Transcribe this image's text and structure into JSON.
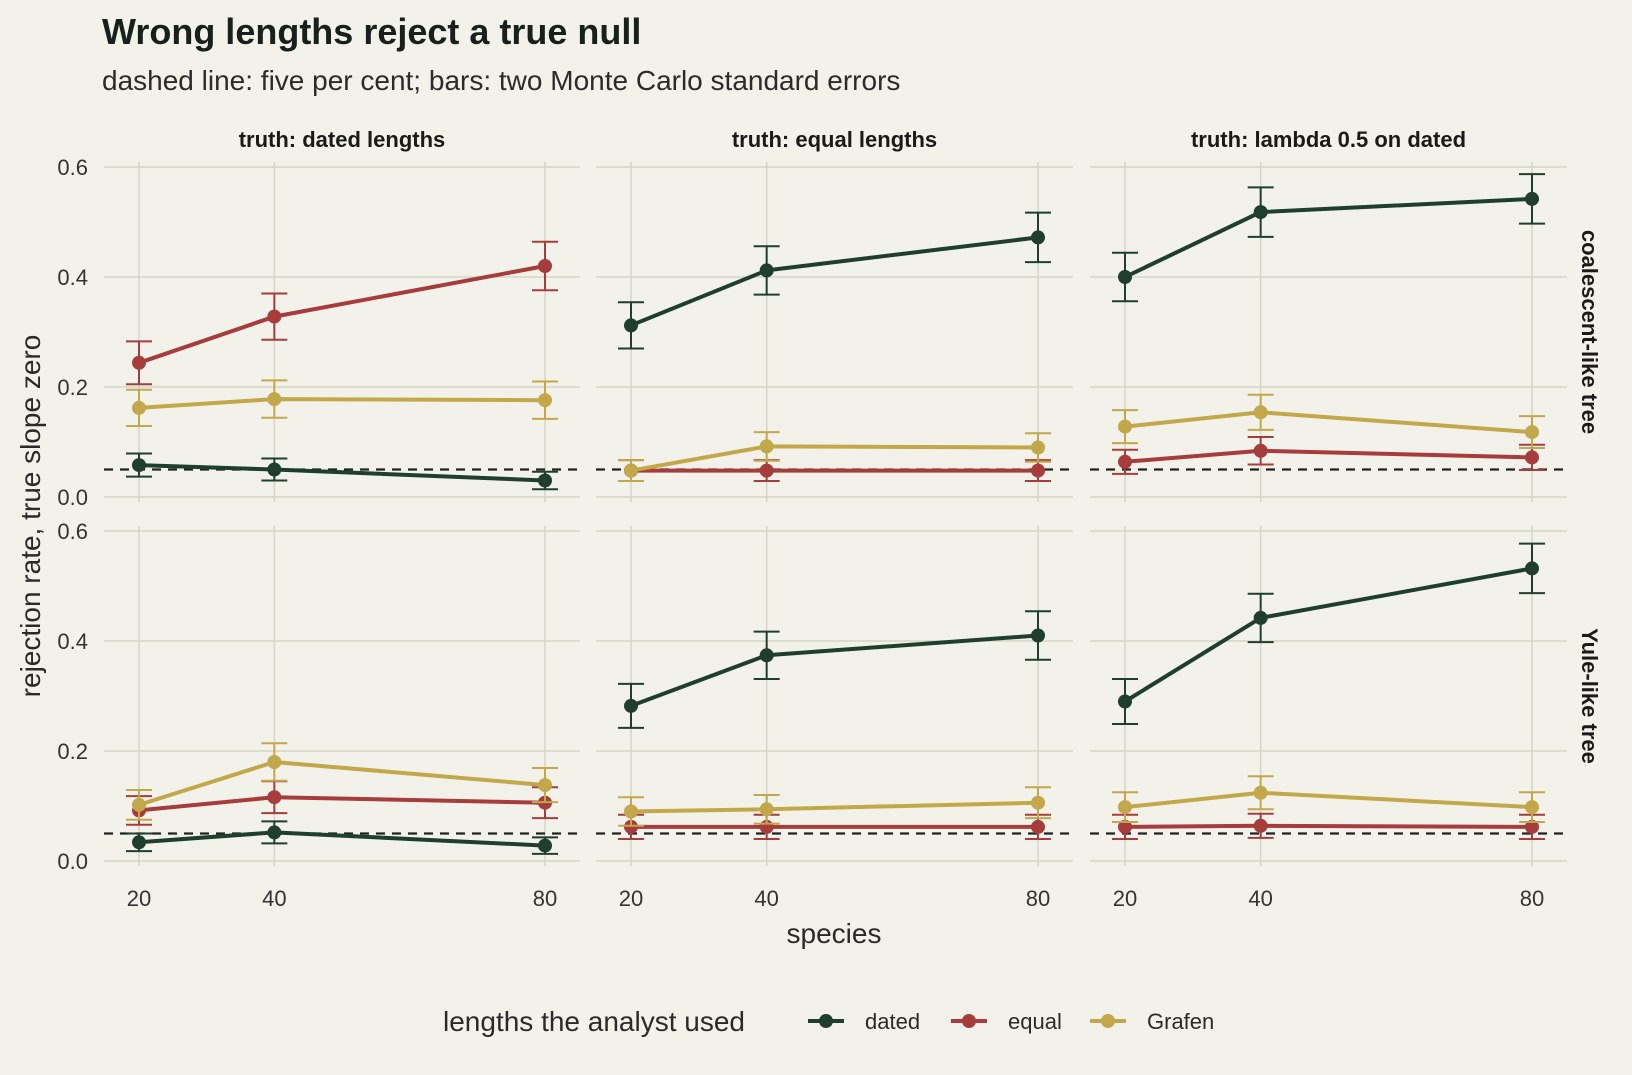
{
  "chart_data": {
    "type": "line",
    "title": "Wrong lengths reject a true null",
    "subtitle": "dashed line: five per cent; bars: two Monte Carlo standard errors",
    "xlabel": "species",
    "ylabel": "rejection rate, true slope zero",
    "x": [
      20,
      40,
      80
    ],
    "x_ticks": [
      "20",
      "40",
      "80"
    ],
    "ylim": [
      0,
      0.6
    ],
    "y_ticks": [
      "0.0",
      "0.2",
      "0.4",
      "0.6"
    ],
    "reference_line": 0.05,
    "grid": true,
    "columns": [
      "truth: dated lengths",
      "truth: equal lengths",
      "truth: lambda 0.5 on dated"
    ],
    "rows": [
      "coalescent-like tree",
      "Yule-like tree"
    ],
    "legend": {
      "title": "lengths the analyst used",
      "position": "bottom",
      "entries": [
        "dated",
        "equal",
        "Grafen"
      ]
    },
    "colors": {
      "dated": "#1f3f2c",
      "equal": "#a63d3c",
      "Grafen": "#c2a84a"
    },
    "panels": [
      {
        "row": 0,
        "col": 0,
        "series": [
          {
            "name": "dated",
            "values": [
              0.058,
              0.05,
              0.03
            ],
            "err": [
              0.021,
              0.02,
              0.016
            ]
          },
          {
            "name": "equal",
            "values": [
              0.244,
              0.328,
              0.42
            ],
            "err": [
              0.039,
              0.042,
              0.044
            ]
          },
          {
            "name": "Grafen",
            "values": [
              0.162,
              0.178,
              0.176
            ],
            "err": [
              0.033,
              0.034,
              0.034
            ]
          }
        ]
      },
      {
        "row": 0,
        "col": 1,
        "series": [
          {
            "name": "dated",
            "values": [
              0.312,
              0.412,
              0.472
            ],
            "err": [
              0.042,
              0.044,
              0.045
            ]
          },
          {
            "name": "equal",
            "values": [
              0.048,
              0.048,
              0.048
            ],
            "err": [
              0.019,
              0.019,
              0.019
            ]
          },
          {
            "name": "Grafen",
            "values": [
              0.048,
              0.092,
              0.09
            ],
            "err": [
              0.019,
              0.026,
              0.026
            ]
          }
        ]
      },
      {
        "row": 0,
        "col": 2,
        "series": [
          {
            "name": "dated",
            "values": [
              0.4,
              0.518,
              0.542
            ],
            "err": [
              0.044,
              0.045,
              0.045
            ]
          },
          {
            "name": "equal",
            "values": [
              0.064,
              0.084,
              0.072
            ],
            "err": [
              0.022,
              0.025,
              0.023
            ]
          },
          {
            "name": "Grafen",
            "values": [
              0.128,
              0.154,
              0.118
            ],
            "err": [
              0.03,
              0.032,
              0.029
            ]
          }
        ]
      },
      {
        "row": 1,
        "col": 0,
        "series": [
          {
            "name": "dated",
            "values": [
              0.034,
              0.052,
              0.028
            ],
            "err": [
              0.016,
              0.02,
              0.015
            ]
          },
          {
            "name": "equal",
            "values": [
              0.092,
              0.116,
              0.106
            ],
            "err": [
              0.026,
              0.029,
              0.028
            ]
          },
          {
            "name": "Grafen",
            "values": [
              0.102,
              0.18,
              0.138
            ],
            "err": [
              0.027,
              0.034,
              0.031
            ]
          }
        ]
      },
      {
        "row": 1,
        "col": 1,
        "series": [
          {
            "name": "dated",
            "values": [
              0.282,
              0.374,
              0.41
            ],
            "err": [
              0.04,
              0.043,
              0.044
            ]
          },
          {
            "name": "equal",
            "values": [
              0.062,
              0.062,
              0.062
            ],
            "err": [
              0.022,
              0.022,
              0.022
            ]
          },
          {
            "name": "Grafen",
            "values": [
              0.09,
              0.094,
              0.106
            ],
            "err": [
              0.026,
              0.026,
              0.028
            ]
          }
        ]
      },
      {
        "row": 1,
        "col": 2,
        "series": [
          {
            "name": "dated",
            "values": [
              0.29,
              0.442,
              0.532
            ],
            "err": [
              0.041,
              0.044,
              0.045
            ]
          },
          {
            "name": "equal",
            "values": [
              0.062,
              0.064,
              0.062
            ],
            "err": [
              0.022,
              0.022,
              0.022
            ]
          },
          {
            "name": "Grafen",
            "values": [
              0.098,
              0.124,
              0.098
            ],
            "err": [
              0.027,
              0.03,
              0.027
            ]
          }
        ]
      }
    ]
  }
}
